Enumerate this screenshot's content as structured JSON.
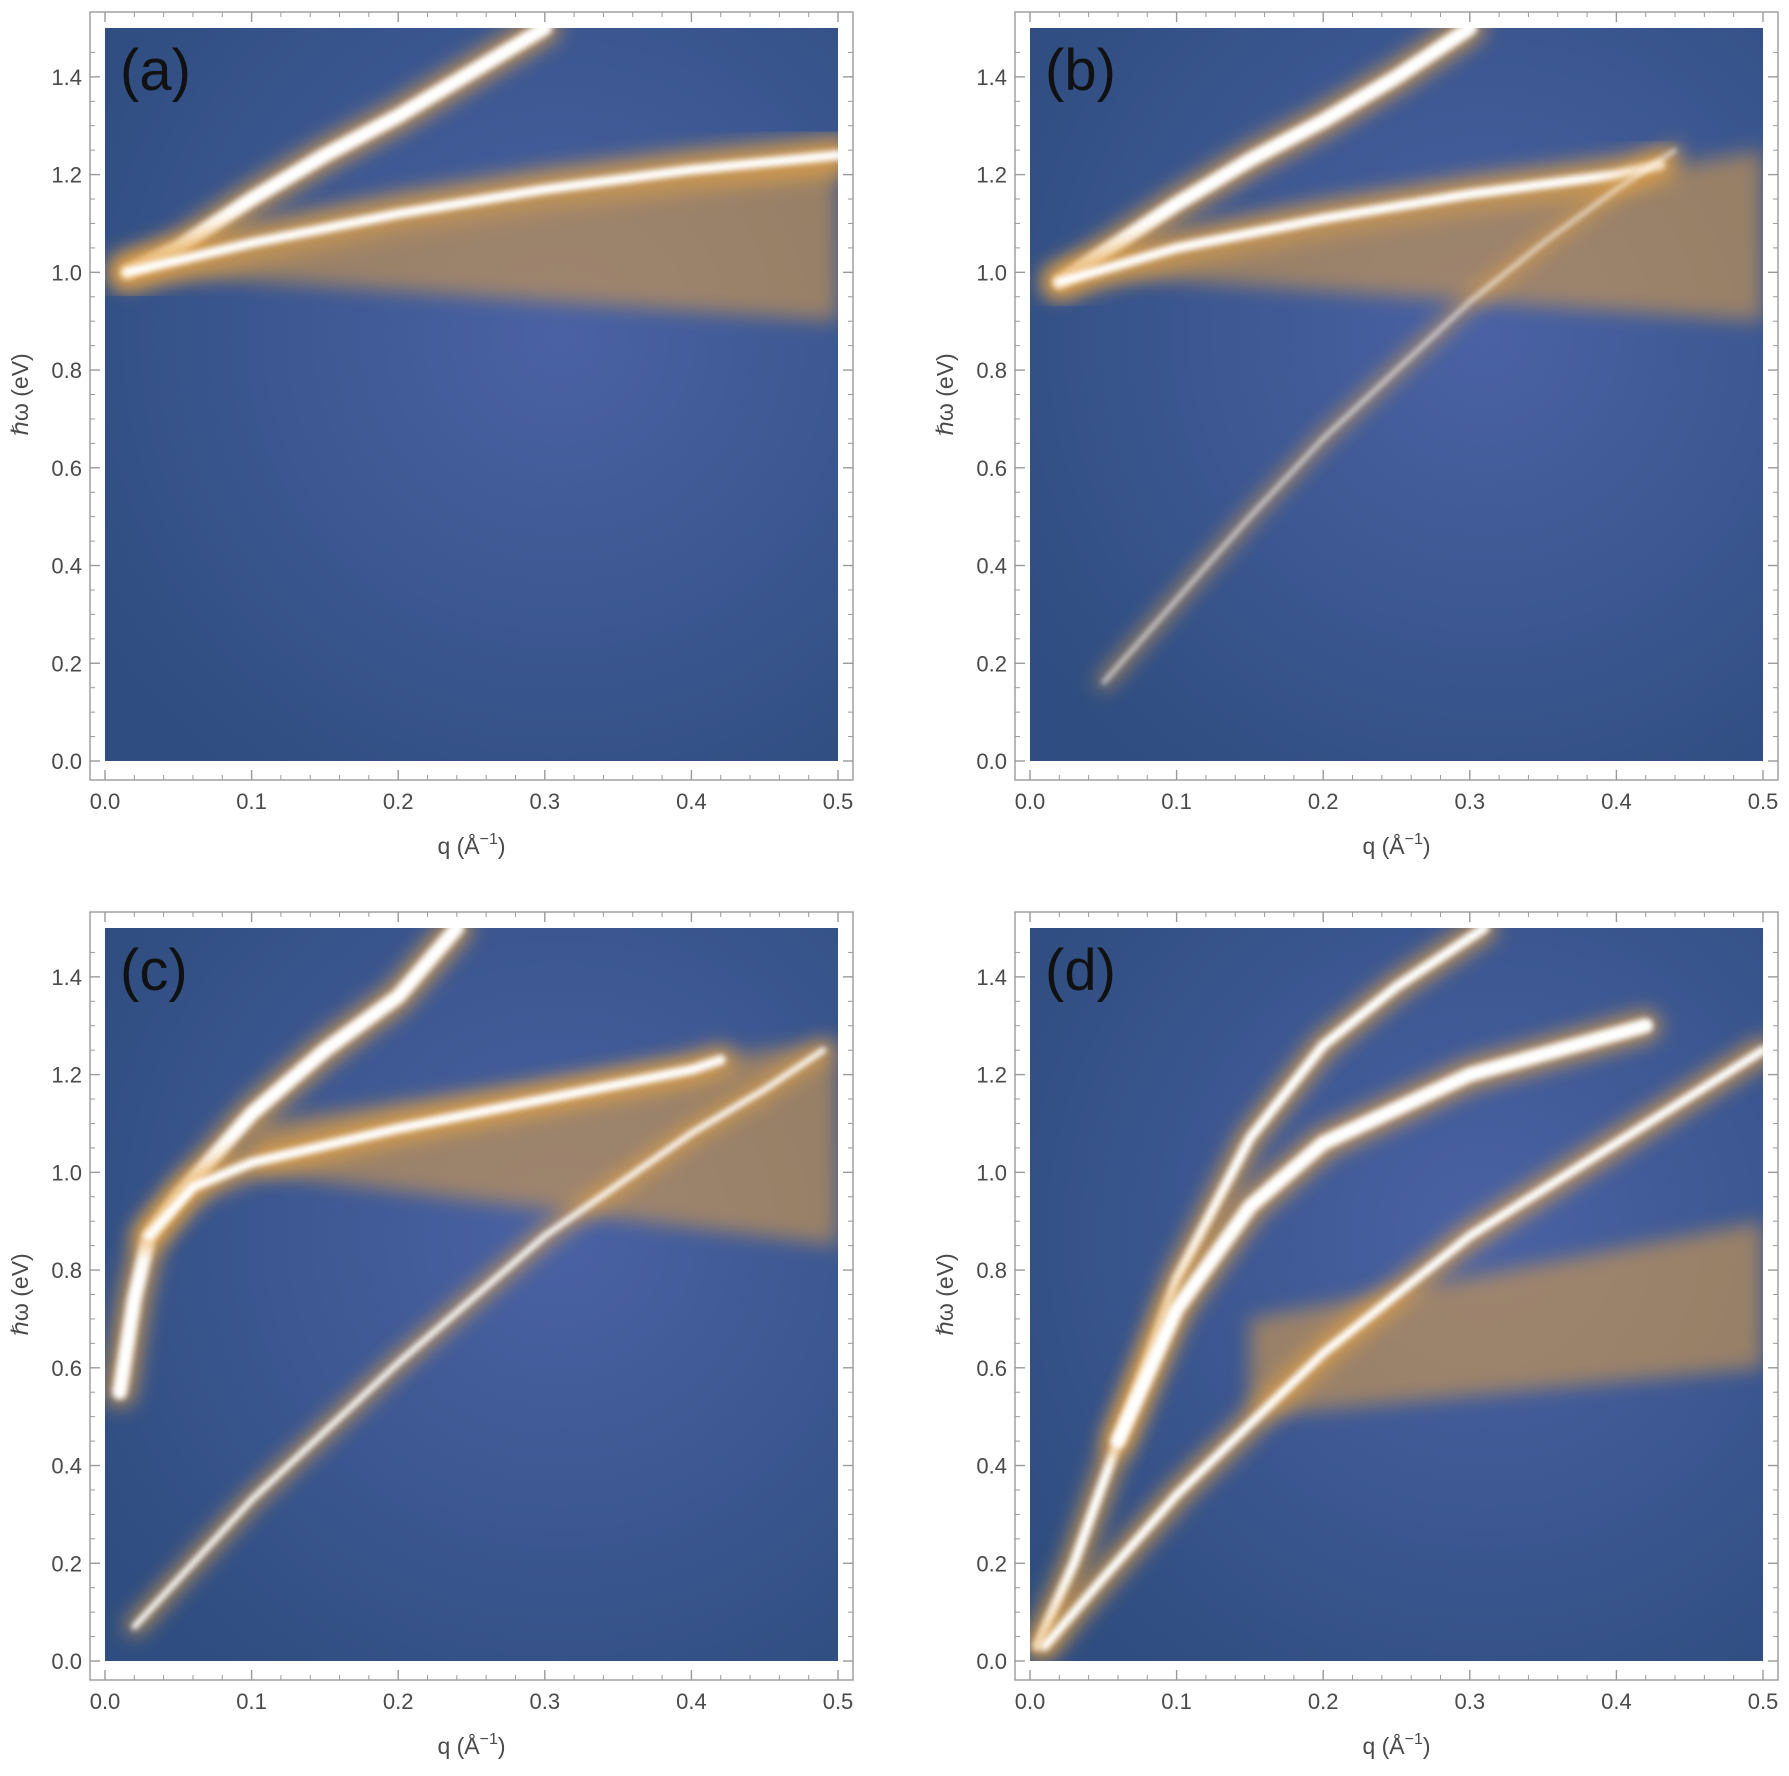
{
  "colors": {
    "background_low": "#2f4d80",
    "background_mid": "#4a62a4",
    "mode_orange": "#e4a244",
    "mode_core": "#ffffff",
    "frame": "#9a9a9a",
    "text": "#4a4a4a"
  },
  "chart_data": [
    {
      "type": "heatmap",
      "panel_label": "(a)",
      "xlabel_main": "q (Å",
      "xlabel_sup": "−1",
      "xlabel_end": ")",
      "ylabel": "ℏω (eV)",
      "xlim": [
        0,
        0.5
      ],
      "ylim": [
        0,
        1.5
      ],
      "x_ticks": [
        "0.0",
        "0.1",
        "0.2",
        "0.3",
        "0.4",
        "0.5"
      ],
      "y_ticks": [
        "0.0",
        "0.2",
        "0.4",
        "0.6",
        "0.8",
        "1.0",
        "1.2",
        "1.4"
      ],
      "broad_region": {
        "q": [
          0.02,
          0.5
        ],
        "upper": [
          1.0,
          1.25
        ],
        "lower": [
          1.0,
          0.9
        ]
      },
      "modes": [
        {
          "points": [
            [
              0.015,
              1.0
            ],
            [
              0.05,
              1.05
            ],
            [
              0.1,
              1.15
            ],
            [
              0.15,
              1.24
            ],
            [
              0.2,
              1.32
            ],
            [
              0.25,
              1.41
            ],
            [
              0.3,
              1.5
            ]
          ],
          "width": 0.03,
          "glow": 0.06
        },
        {
          "points": [
            [
              0.015,
              1.0
            ],
            [
              0.1,
              1.06
            ],
            [
              0.2,
              1.12
            ],
            [
              0.3,
              1.17
            ],
            [
              0.4,
              1.21
            ],
            [
              0.5,
              1.24
            ]
          ],
          "width": 0.02,
          "glow": 0.08
        }
      ]
    },
    {
      "type": "heatmap",
      "panel_label": "(b)",
      "xlabel_main": "q (Å",
      "xlabel_sup": "−1",
      "xlabel_end": ")",
      "ylabel": "ℏω (eV)",
      "xlim": [
        0,
        0.5
      ],
      "ylim": [
        0,
        1.5
      ],
      "x_ticks": [
        "0.0",
        "0.1",
        "0.2",
        "0.3",
        "0.4",
        "0.5"
      ],
      "y_ticks": [
        "0.0",
        "0.2",
        "0.4",
        "0.6",
        "0.8",
        "1.0",
        "1.2",
        "1.4"
      ],
      "broad_region": {
        "q": [
          0.02,
          0.5
        ],
        "upper": [
          1.0,
          1.25
        ],
        "lower": [
          1.0,
          0.9
        ]
      },
      "modes": [
        {
          "points": [
            [
              0.02,
              0.98
            ],
            [
              0.05,
              1.04
            ],
            [
              0.1,
              1.14
            ],
            [
              0.15,
              1.23
            ],
            [
              0.2,
              1.31
            ],
            [
              0.25,
              1.4
            ],
            [
              0.3,
              1.5
            ]
          ],
          "width": 0.03,
          "glow": 0.06
        },
        {
          "points": [
            [
              0.02,
              0.98
            ],
            [
              0.1,
              1.05
            ],
            [
              0.2,
              1.11
            ],
            [
              0.3,
              1.16
            ],
            [
              0.4,
              1.2
            ],
            [
              0.43,
              1.22
            ]
          ],
          "width": 0.02,
          "glow": 0.07
        },
        {
          "points": [
            [
              0.05,
              0.16
            ],
            [
              0.1,
              0.33
            ],
            [
              0.15,
              0.5
            ],
            [
              0.2,
              0.66
            ],
            [
              0.25,
              0.8
            ],
            [
              0.3,
              0.94
            ],
            [
              0.35,
              1.06
            ],
            [
              0.4,
              1.17
            ],
            [
              0.44,
              1.25
            ]
          ],
          "width": 0.006,
          "glow": 0.025
        }
      ]
    },
    {
      "type": "heatmap",
      "panel_label": "(c)",
      "xlabel_main": "q (Å",
      "xlabel_sup": "−1",
      "xlabel_end": ")",
      "ylabel": "ℏω (eV)",
      "xlim": [
        0,
        0.5
      ],
      "ylim": [
        0,
        1.5
      ],
      "x_ticks": [
        "0.0",
        "0.1",
        "0.2",
        "0.3",
        "0.4",
        "0.5"
      ],
      "y_ticks": [
        "0.0",
        "0.2",
        "0.4",
        "0.6",
        "0.8",
        "1.0",
        "1.2",
        "1.4"
      ],
      "broad_region": {
        "q": [
          0.1,
          0.5
        ],
        "upper": [
          1.1,
          1.27
        ],
        "lower": [
          1.0,
          0.85
        ]
      },
      "modes": [
        {
          "points": [
            [
              0.01,
              0.55
            ],
            [
              0.02,
              0.74
            ],
            [
              0.03,
              0.87
            ],
            [
              0.05,
              0.95
            ],
            [
              0.1,
              1.12
            ],
            [
              0.15,
              1.25
            ],
            [
              0.2,
              1.36
            ],
            [
              0.24,
              1.5
            ]
          ],
          "width": 0.03,
          "glow": 0.06
        },
        {
          "points": [
            [
              0.03,
              0.87
            ],
            [
              0.06,
              0.97
            ],
            [
              0.1,
              1.02
            ],
            [
              0.2,
              1.09
            ],
            [
              0.3,
              1.15
            ],
            [
              0.4,
              1.21
            ],
            [
              0.42,
              1.23
            ]
          ],
          "width": 0.02,
          "glow": 0.06
        },
        {
          "points": [
            [
              0.02,
              0.07
            ],
            [
              0.1,
              0.33
            ],
            [
              0.2,
              0.61
            ],
            [
              0.3,
              0.87
            ],
            [
              0.4,
              1.08
            ],
            [
              0.45,
              1.17
            ],
            [
              0.49,
              1.25
            ]
          ],
          "width": 0.012,
          "glow": 0.035
        }
      ]
    },
    {
      "type": "heatmap",
      "panel_label": "(d)",
      "xlabel_main": "q (Å",
      "xlabel_sup": "−1",
      "xlabel_end": ")",
      "ylabel": "ℏω (eV)",
      "xlim": [
        0,
        0.5
      ],
      "ylim": [
        0,
        1.5
      ],
      "x_ticks": [
        "0.0",
        "0.1",
        "0.2",
        "0.3",
        "0.4",
        "0.5"
      ],
      "y_ticks": [
        "0.0",
        "0.2",
        "0.4",
        "0.6",
        "0.8",
        "1.0",
        "1.2",
        "1.4"
      ],
      "broad_region": {
        "q": [
          0.15,
          0.5
        ],
        "upper": [
          0.7,
          0.9
        ],
        "lower": [
          0.5,
          0.6
        ]
      },
      "modes": [
        {
          "points": [
            [
              0.005,
              0.03
            ],
            [
              0.03,
              0.2
            ],
            [
              0.06,
              0.45
            ],
            [
              0.1,
              0.78
            ],
            [
              0.15,
              1.07
            ],
            [
              0.2,
              1.26
            ],
            [
              0.25,
              1.38
            ],
            [
              0.31,
              1.5
            ]
          ],
          "width": 0.02,
          "glow": 0.05
        },
        {
          "points": [
            [
              0.06,
              0.45
            ],
            [
              0.1,
              0.72
            ],
            [
              0.15,
              0.93
            ],
            [
              0.2,
              1.06
            ],
            [
              0.3,
              1.2
            ],
            [
              0.42,
              1.3
            ]
          ],
          "width": 0.03,
          "glow": 0.06
        },
        {
          "points": [
            [
              0.01,
              0.03
            ],
            [
              0.05,
              0.17
            ],
            [
              0.1,
              0.34
            ],
            [
              0.2,
              0.63
            ],
            [
              0.3,
              0.87
            ],
            [
              0.4,
              1.06
            ],
            [
              0.5,
              1.25
            ]
          ],
          "width": 0.018,
          "glow": 0.05
        }
      ]
    }
  ]
}
